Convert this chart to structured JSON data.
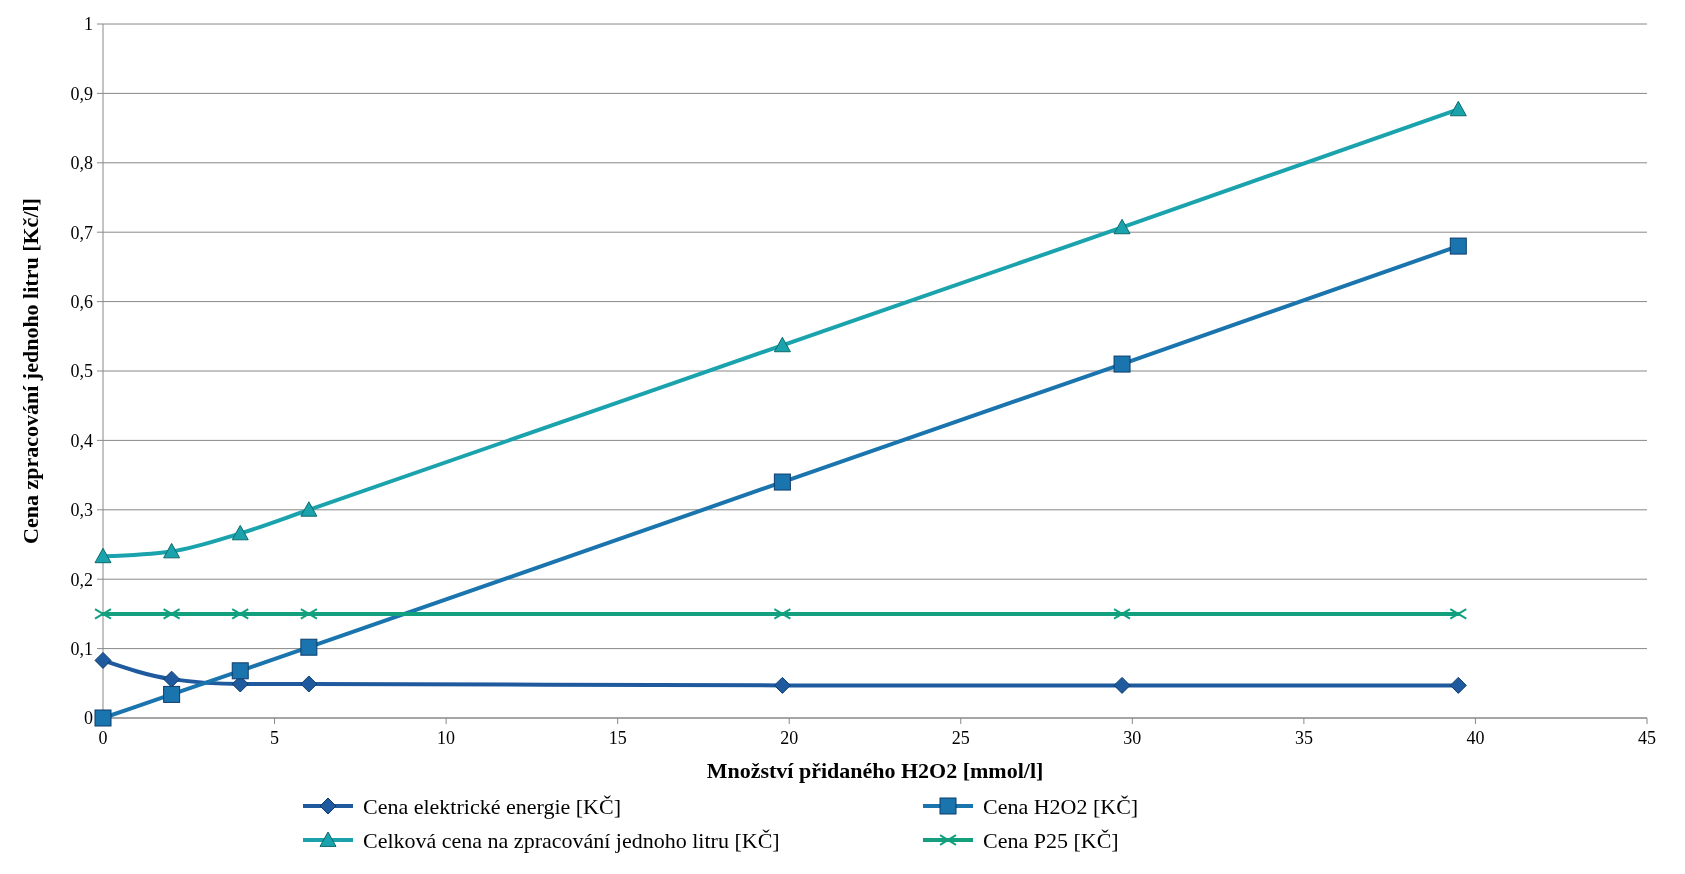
{
  "chart_data": {
    "type": "line",
    "xlabel": "Množství přidaného H2O2 [mmol/l]",
    "ylabel": "Cena zpracování jednoho litru [Kč/l]",
    "x": [
      0,
      2,
      4,
      6,
      19.8,
      29.7,
      39.5
    ],
    "series": [
      {
        "name": "Cena elektrické energie [KČ]",
        "color": "#1f5a9e",
        "marker": "diamond",
        "values": [
          0.083,
          0.056,
          0.049,
          0.049,
          0.047,
          0.047,
          0.047
        ]
      },
      {
        "name": "Cena H2O2 [KČ]",
        "color": "#1a74ad",
        "marker": "square",
        "values": [
          0,
          0.034,
          0.068,
          0.102,
          0.34,
          0.51,
          0.68
        ]
      },
      {
        "name": "Celková cena na zpracování jednoho litru [KČ]",
        "color": "#1aa3ad",
        "marker": "triangle",
        "values": [
          0.233,
          0.24,
          0.266,
          0.3,
          0.537,
          0.707,
          0.877
        ]
      },
      {
        "name": "Cena P25 [KČ]",
        "color": "#12a07f",
        "marker": "cross",
        "values": [
          0.15,
          0.15,
          0.15,
          0.15,
          0.15,
          0.15,
          0.15
        ]
      }
    ],
    "xlim": [
      0,
      45
    ],
    "xticks": [
      0,
      5,
      10,
      15,
      20,
      25,
      30,
      35,
      40,
      45
    ],
    "ylim": [
      0,
      1
    ],
    "yticks": [
      0,
      {
        "value": 0.1,
        "label": "0,1"
      },
      {
        "value": 0.2,
        "label": "0,2"
      },
      {
        "value": 0.3,
        "label": "0,3"
      },
      {
        "value": 0.4,
        "label": "0,4"
      },
      {
        "value": 0.5,
        "label": "0,5"
      },
      {
        "value": 0.6,
        "label": "0,6"
      },
      {
        "value": 0.7,
        "label": "0,7"
      },
      {
        "value": 0.8,
        "label": "0,8"
      },
      {
        "value": 0.9,
        "label": "0,9"
      },
      1
    ],
    "grid": "y",
    "legend": "bottom",
    "line_style": "solid"
  }
}
